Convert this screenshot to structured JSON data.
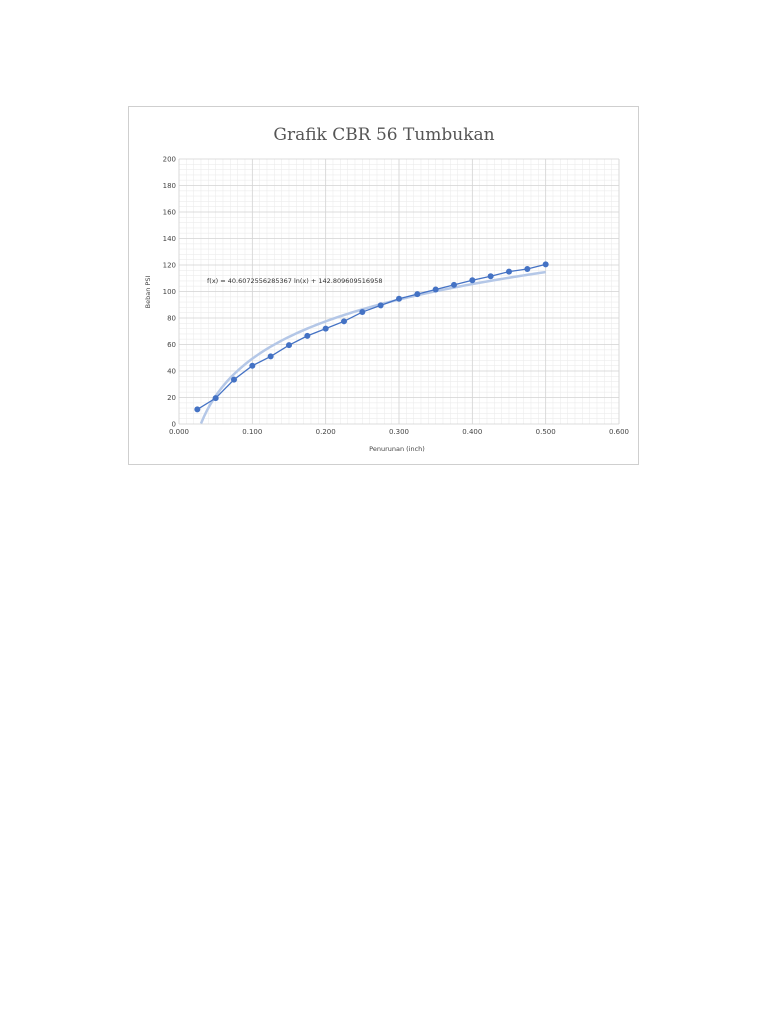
{
  "chart_data": {
    "type": "scatter",
    "title": "Grafik CBR 56 Tumbukan",
    "xlabel": "Penurunan (inch)",
    "ylabel": "Beban PSI",
    "xlim": [
      0,
      0.6
    ],
    "ylim": [
      0,
      200
    ],
    "x_ticks": [
      "0.000",
      "0.100",
      "0.200",
      "0.300",
      "0.400",
      "0.500",
      "0.600"
    ],
    "y_ticks": [
      "0",
      "20",
      "40",
      "60",
      "80",
      "100",
      "120",
      "140",
      "160",
      "180",
      "200"
    ],
    "grid": true,
    "series": [
      {
        "x": [
          0.025,
          0.05,
          0.075,
          0.1,
          0.125,
          0.15,
          0.175,
          0.2,
          0.225,
          0.25,
          0.275,
          0.3,
          0.325,
          0.35,
          0.375,
          0.4,
          0.425,
          0.45,
          0.475,
          0.5
        ],
        "y": [
          11,
          19.5,
          33.5,
          44,
          51,
          59.5,
          66.5,
          72,
          77.5,
          84.5,
          89.5,
          94.5,
          98,
          101.5,
          105,
          108.5,
          111.5,
          115,
          117,
          120.5
        ],
        "color": "#4472c4"
      }
    ],
    "trendline": {
      "type": "logarithmic",
      "a": 40.6072556285367,
      "b": 142.809609516958,
      "x_range": [
        0.03,
        0.5
      ],
      "equation": "f(x) = 40.6072556285367 ln(x) + 142.809609516958",
      "color": "#b4c7e7"
    }
  }
}
